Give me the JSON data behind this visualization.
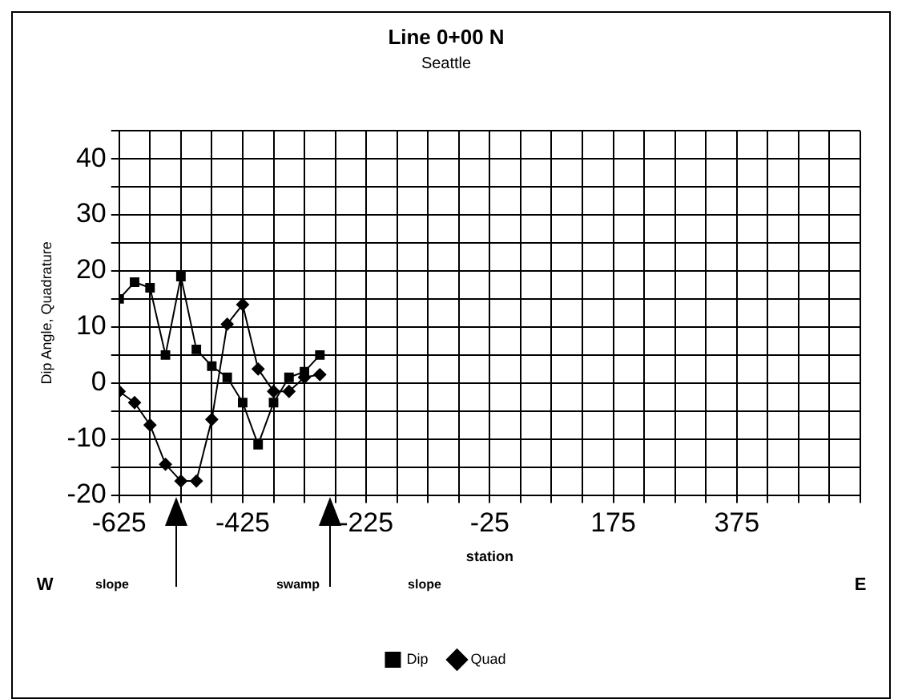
{
  "chart_data": {
    "type": "line",
    "title": "Line 0+00 N",
    "subtitle": "Seattle",
    "xlabel": "station",
    "ylabel": "Dip Angle, Quadrature",
    "x": [
      -625,
      -600,
      -575,
      -550,
      -525,
      -500,
      -475,
      -450,
      -425,
      -400,
      -375,
      -350,
      -325,
      -300
    ],
    "series": [
      {
        "name": "Dip",
        "color": "#000000",
        "marker": "square",
        "values": [
          15,
          18,
          17,
          5,
          19,
          6,
          3,
          1,
          -3.5,
          -11,
          -3.5,
          1,
          2,
          5
        ]
      },
      {
        "name": "Quad",
        "color": "#000000",
        "marker": "diamond",
        "values": [
          -1.5,
          -3.5,
          -7.5,
          -14.5,
          -17.5,
          -17.5,
          -6.5,
          10.5,
          14,
          2.5,
          -1.5,
          -1.5,
          1,
          1.5
        ]
      }
    ],
    "xlim": [
      -625,
      575
    ],
    "xticks": [
      -625,
      {
        "value": -575,
        "label": null
      },
      {
        "value": -525,
        "label": null
      },
      {
        "value": -475,
        "label": null
      },
      -425,
      {
        "value": -375,
        "label": null
      },
      {
        "value": -325,
        "label": null
      },
      {
        "value": -275,
        "label": null
      },
      -225,
      {
        "value": -175,
        "label": null
      },
      {
        "value": -125,
        "label": null
      },
      {
        "value": -75,
        "label": null
      },
      -25,
      {
        "value": 25,
        "label": null
      },
      {
        "value": 75,
        "label": null
      },
      {
        "value": 125,
        "label": null
      },
      175,
      {
        "value": 225,
        "label": null
      },
      {
        "value": 275,
        "label": null
      },
      {
        "value": 325,
        "label": null
      },
      375,
      {
        "value": 425,
        "label": null
      },
      {
        "value": 475,
        "label": null
      },
      {
        "value": 525,
        "label": null
      },
      {
        "value": 575,
        "label": null
      }
    ],
    "ylim": [
      -20,
      45
    ],
    "yticks": [
      -20,
      {
        "value": -15,
        "label": null
      },
      -10,
      {
        "value": -5,
        "label": null
      },
      0,
      {
        "value": 5,
        "label": null
      },
      10,
      {
        "value": 15,
        "label": null
      },
      20,
      {
        "value": 25,
        "label": null
      },
      30,
      {
        "value": 35,
        "label": null
      },
      40,
      {
        "value": 45,
        "label": null
      }
    ],
    "grid": true,
    "legend": "bottom",
    "line_style": "solid",
    "annotations": [
      "W",
      "slope",
      "swamp",
      "slope",
      "E"
    ]
  }
}
